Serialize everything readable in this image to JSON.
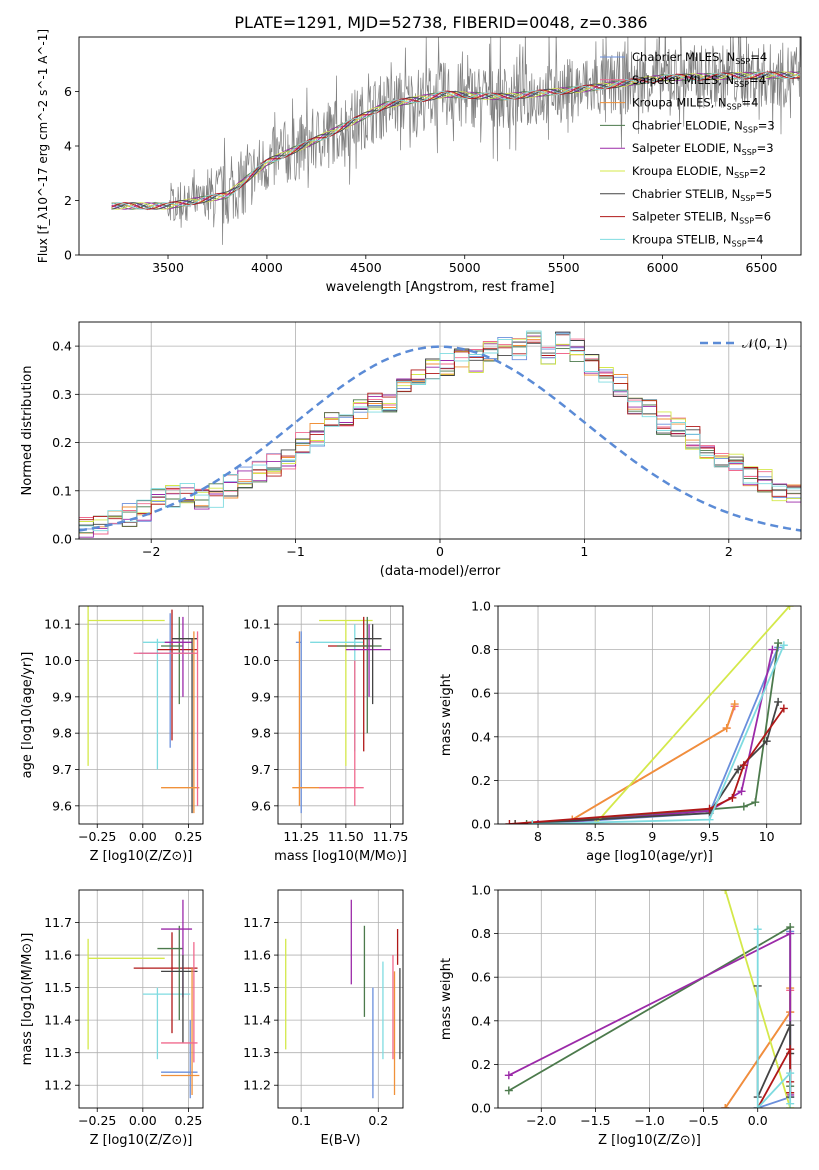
{
  "figure_title": "PLATE=1291, MJD=52738, FIBERID=0048, z=0.386",
  "legend_entries": [
    {
      "base": "Chabrier MILES, N",
      "sub": "SSP",
      "tail": "=4",
      "color": "#6a8fdc"
    },
    {
      "base": "Salpeter MILES, N",
      "sub": "SSP",
      "tail": "=4",
      "color": "#f06a8e"
    },
    {
      "base": "Kroupa MILES, N",
      "sub": "SSP",
      "tail": "=4",
      "color": "#f0913a"
    },
    {
      "base": "Chabrier ELODIE, N",
      "sub": "SSP",
      "tail": "=3",
      "color": "#4c7a4c"
    },
    {
      "base": "Salpeter ELODIE, N",
      "sub": "SSP",
      "tail": "=3",
      "color": "#9b2aa8"
    },
    {
      "base": "Kroupa ELODIE, N",
      "sub": "SSP",
      "tail": "=2",
      "color": "#d4e84a"
    },
    {
      "base": "Chabrier STELIB, N",
      "sub": "SSP",
      "tail": "=5",
      "color": "#444444"
    },
    {
      "base": "Salpeter STELIB, N",
      "sub": "SSP",
      "tail": "=6",
      "color": "#b01818"
    },
    {
      "base": "Kroupa STELIB, N",
      "sub": "SSP",
      "tail": "=4",
      "color": "#7fdbe0"
    }
  ],
  "chart_data": [
    {
      "id": "spectrum",
      "type": "line",
      "xlabel": "wavelength [Angstrom, rest frame]",
      "ylabel": "Flux [f_λ10^-17 erg cm^-2 s^-1 A^-1]",
      "xlim": [
        3050,
        6700
      ],
      "ylim": [
        0,
        8
      ],
      "xticks": [
        3500,
        4000,
        4500,
        5000,
        5500,
        6000,
        6500
      ],
      "yticks": [
        0,
        2,
        4,
        6
      ],
      "grid": false,
      "legend": "top-right",
      "data_color": "#808080",
      "model_trend": {
        "x": [
          3200,
          3500,
          3800,
          4000,
          4300,
          4600,
          4900,
          5200,
          5600,
          6000,
          6500
        ],
        "y": [
          1.8,
          1.8,
          2.2,
          3.4,
          4.4,
          5.5,
          5.9,
          5.8,
          6.1,
          6.5,
          6.6
        ]
      }
    },
    {
      "id": "residuals",
      "type": "area",
      "xlabel": "(data-model)/error",
      "ylabel": "Normed distribution",
      "xlim": [
        -2.5,
        2.5
      ],
      "ylim": [
        0,
        0.45
      ],
      "xticks": [
        -2,
        -1,
        0,
        1,
        2
      ],
      "yticks": [
        0.0,
        0.1,
        0.2,
        0.3,
        0.4
      ],
      "grid": true,
      "legend": "top-right",
      "reference_label": "𝒩(0, 1)",
      "reference_color": "#5b8bd6",
      "bin_width": 0.1,
      "bin_start": -2.5,
      "histogram_mean": [
        0.02,
        0.03,
        0.05,
        0.05,
        0.06,
        0.08,
        0.09,
        0.1,
        0.085,
        0.09,
        0.11,
        0.13,
        0.14,
        0.155,
        0.17,
        0.2,
        0.215,
        0.245,
        0.24,
        0.265,
        0.28,
        0.285,
        0.31,
        0.34,
        0.35,
        0.36,
        0.38,
        0.37,
        0.39,
        0.4,
        0.395,
        0.41,
        0.38,
        0.405,
        0.39,
        0.36,
        0.34,
        0.32,
        0.27,
        0.265,
        0.24,
        0.235,
        0.21,
        0.19,
        0.17,
        0.16,
        0.135,
        0.12,
        0.1,
        0.09,
        0.08,
        0.075,
        0.07,
        0.06,
        0.055,
        0.05,
        0.045,
        0.03
      ]
    },
    {
      "id": "z-age",
      "type": "scatter",
      "xlabel": "Z [log10(Z/Z⊙)]",
      "ylabel": "age  [log10(age/yr)]",
      "xlim": [
        -0.35,
        0.33
      ],
      "ylim": [
        9.55,
        10.15
      ],
      "xticks": [
        -0.25,
        0.0,
        0.25
      ],
      "xtick_labels": [
        "−0.25",
        "0.00",
        "0.25"
      ],
      "yticks": [
        9.6,
        9.7,
        9.8,
        9.9,
        10.0,
        10.1
      ],
      "grid": true,
      "points": [
        {
          "x": -0.3,
          "y": 10.11,
          "xmin": -0.3,
          "xmax": 0.12,
          "ymin": 9.71,
          "ymax": 10.15,
          "model": 5
        },
        {
          "x": 0.08,
          "y": 10.05,
          "xmin": 0.0,
          "xmax": 0.26,
          "ymin": 9.7,
          "ymax": 10.06,
          "model": 8
        },
        {
          "x": 0.15,
          "y": 10.02,
          "xmin": -0.02,
          "xmax": 0.28,
          "ymin": 9.76,
          "ymax": 10.13,
          "model": 0
        },
        {
          "x": 0.16,
          "y": 10.03,
          "xmin": 0.08,
          "xmax": 0.3,
          "ymin": 9.78,
          "ymax": 10.14,
          "model": 7
        },
        {
          "x": 0.2,
          "y": 10.04,
          "xmin": 0.1,
          "xmax": 0.22,
          "ymin": 9.88,
          "ymax": 10.12,
          "model": 3
        },
        {
          "x": 0.22,
          "y": 10.05,
          "xmin": 0.12,
          "xmax": 0.27,
          "ymin": 9.9,
          "ymax": 10.12,
          "model": 4
        },
        {
          "x": 0.27,
          "y": 10.06,
          "xmin": 0.16,
          "xmax": 0.3,
          "ymin": 9.58,
          "ymax": 10.06,
          "model": 6
        },
        {
          "x": 0.28,
          "y": 9.65,
          "xmin": 0.1,
          "xmax": 0.31,
          "ymin": 9.58,
          "ymax": 10.08,
          "model": 2
        },
        {
          "x": 0.3,
          "y": 10.02,
          "xmin": -0.05,
          "xmax": 0.3,
          "ymin": 9.6,
          "ymax": 10.08,
          "model": 1
        }
      ]
    },
    {
      "id": "mass-age",
      "type": "scatter",
      "xlabel": "mass [log10(M/M⊙)]",
      "ylabel": "",
      "xlim": [
        11.12,
        11.82
      ],
      "ylim": [
        9.55,
        10.15
      ],
      "xticks": [
        11.25,
        11.5,
        11.75
      ],
      "xtick_labels": [
        "11.25",
        "11.50",
        "11.75"
      ],
      "yticks": [
        9.6,
        9.7,
        9.8,
        9.9,
        10.0,
        10.1
      ],
      "grid": true,
      "points": [
        {
          "x": 11.25,
          "y": 10.05,
          "xmin": 11.22,
          "xmax": 11.25,
          "ymin": 9.58,
          "ymax": 10.08,
          "model": 0
        },
        {
          "x": 11.5,
          "y": 10.11,
          "xmin": 11.35,
          "xmax": 11.65,
          "ymin": 9.71,
          "ymax": 10.11,
          "model": 5
        },
        {
          "x": 11.55,
          "y": 10.05,
          "xmin": 11.3,
          "xmax": 11.6,
          "ymin": 9.75,
          "ymax": 10.1,
          "model": 8
        },
        {
          "x": 11.6,
          "y": 10.04,
          "xmin": 11.4,
          "xmax": 11.65,
          "ymin": 9.75,
          "ymax": 10.12,
          "model": 7
        },
        {
          "x": 11.62,
          "y": 10.04,
          "xmin": 11.45,
          "xmax": 11.7,
          "ymin": 9.8,
          "ymax": 10.12,
          "model": 3
        },
        {
          "x": 11.63,
          "y": 10.03,
          "xmin": 11.5,
          "xmax": 11.75,
          "ymin": 9.9,
          "ymax": 10.1,
          "model": 4
        },
        {
          "x": 11.65,
          "y": 10.06,
          "xmin": 11.55,
          "xmax": 11.7,
          "ymin": 9.88,
          "ymax": 10.1,
          "model": 6
        },
        {
          "x": 11.24,
          "y": 9.65,
          "xmin": 11.2,
          "xmax": 11.48,
          "ymin": 9.6,
          "ymax": 10.08,
          "model": 2
        },
        {
          "x": 11.55,
          "y": 9.65,
          "xmin": 11.35,
          "xmax": 11.6,
          "ymin": 9.6,
          "ymax": 10.0,
          "model": 1
        }
      ]
    },
    {
      "id": "weight-age",
      "type": "line",
      "xlabel": "age  [log10(age/yr)]",
      "ylabel": "mass weight",
      "xlim": [
        7.65,
        10.3
      ],
      "ylim": [
        0.0,
        1.0
      ],
      "xticks": [
        8.0,
        8.5,
        9.0,
        9.5,
        10.0
      ],
      "yticks": [
        0.0,
        0.2,
        0.4,
        0.6,
        0.8,
        1.0
      ],
      "grid": true,
      "series": [
        {
          "model": 0,
          "x": [
            8.0,
            9.5,
            10.1
          ],
          "y": [
            0.0,
            0.05,
            0.81
          ]
        },
        {
          "model": 1,
          "x": [
            8.3,
            9.65,
            9.72
          ],
          "y": [
            0.02,
            0.44,
            0.54
          ]
        },
        {
          "model": 2,
          "x": [
            7.8,
            8.3,
            9.65,
            9.72
          ],
          "y": [
            0.0,
            0.02,
            0.44,
            0.55
          ]
        },
        {
          "model": 3,
          "x": [
            7.9,
            9.8,
            9.9,
            10.1
          ],
          "y": [
            0.0,
            0.08,
            0.1,
            0.83
          ]
        },
        {
          "model": 4,
          "x": [
            8.0,
            9.5,
            9.78,
            10.05
          ],
          "y": [
            0.0,
            0.06,
            0.15,
            0.8
          ]
        },
        {
          "model": 5,
          "x": [
            8.5,
            10.2
          ],
          "y": [
            0.0,
            1.0
          ]
        },
        {
          "model": 6,
          "x": [
            7.8,
            9.5,
            9.75,
            10.0,
            10.1
          ],
          "y": [
            0.0,
            0.05,
            0.25,
            0.38,
            0.56
          ]
        },
        {
          "model": 7,
          "x": [
            7.75,
            9.5,
            9.7,
            9.8,
            10.15
          ],
          "y": [
            0.0,
            0.07,
            0.12,
            0.27,
            0.53
          ]
        },
        {
          "model": 8,
          "x": [
            7.95,
            9.5,
            10.15
          ],
          "y": [
            0.0,
            0.02,
            0.82
          ]
        }
      ]
    },
    {
      "id": "z-mass",
      "type": "scatter",
      "xlabel": "Z [log10(Z/Z⊙)]",
      "ylabel": "mass [log10(M/M⊙)]",
      "xlim": [
        -0.35,
        0.33
      ],
      "ylim": [
        11.13,
        11.8
      ],
      "xticks": [
        -0.25,
        0.0,
        0.25
      ],
      "xtick_labels": [
        "−0.25",
        "0.00",
        "0.25"
      ],
      "yticks": [
        11.2,
        11.3,
        11.4,
        11.5,
        11.6,
        11.7
      ],
      "grid": true,
      "points": [
        {
          "x": -0.3,
          "y": 11.59,
          "xmin": -0.3,
          "xmax": 0.12,
          "ymin": 11.31,
          "ymax": 11.65,
          "model": 5
        },
        {
          "x": 0.08,
          "y": 11.48,
          "xmin": 0.0,
          "xmax": 0.26,
          "ymin": 11.28,
          "ymax": 11.5,
          "model": 8
        },
        {
          "x": 0.16,
          "y": 11.56,
          "xmin": -0.05,
          "xmax": 0.3,
          "ymin": 11.36,
          "ymax": 11.67,
          "model": 7
        },
        {
          "x": 0.2,
          "y": 11.62,
          "xmin": 0.08,
          "xmax": 0.22,
          "ymin": 11.4,
          "ymax": 11.69,
          "model": 3
        },
        {
          "x": 0.22,
          "y": 11.68,
          "xmin": 0.1,
          "xmax": 0.27,
          "ymin": 11.47,
          "ymax": 11.77,
          "model": 4
        },
        {
          "x": 0.22,
          "y": 11.55,
          "xmin": 0.1,
          "xmax": 0.3,
          "ymin": 11.33,
          "ymax": 11.6,
          "model": 6
        },
        {
          "x": 0.26,
          "y": 11.24,
          "xmin": 0.1,
          "xmax": 0.3,
          "ymin": 11.16,
          "ymax": 11.4,
          "model": 0
        },
        {
          "x": 0.27,
          "y": 11.23,
          "xmin": 0.1,
          "xmax": 0.31,
          "ymin": 11.17,
          "ymax": 11.56,
          "model": 2
        },
        {
          "x": 0.28,
          "y": 11.33,
          "xmin": 0.1,
          "xmax": 0.3,
          "ymin": 11.27,
          "ymax": 11.64,
          "model": 1
        }
      ]
    },
    {
      "id": "ebv-mass",
      "type": "scatter",
      "xlabel": "E(B-V)",
      "ylabel": "",
      "xlim": [
        0.07,
        0.232
      ],
      "ylim": [
        11.13,
        11.8
      ],
      "xticks": [
        0.1,
        0.2
      ],
      "xtick_labels": [
        "0.1",
        "0.2"
      ],
      "yticks": [
        11.2,
        11.3,
        11.4,
        11.5,
        11.6,
        11.7
      ],
      "grid": true,
      "points": [
        {
          "x": 0.08,
          "y": 11.48,
          "xmin": 0.08,
          "xmax": 0.08,
          "ymin": 11.31,
          "ymax": 11.65,
          "model": 5
        },
        {
          "x": 0.165,
          "y": 11.64,
          "xmin": 0.165,
          "xmax": 0.165,
          "ymin": 11.51,
          "ymax": 11.77,
          "model": 4
        },
        {
          "x": 0.182,
          "y": 11.55,
          "xmin": 0.182,
          "xmax": 0.182,
          "ymin": 11.41,
          "ymax": 11.69,
          "model": 3
        },
        {
          "x": 0.193,
          "y": 11.33,
          "xmin": 0.193,
          "xmax": 0.193,
          "ymin": 11.16,
          "ymax": 11.5,
          "model": 0
        },
        {
          "x": 0.206,
          "y": 11.43,
          "xmin": 0.206,
          "xmax": 0.206,
          "ymin": 11.28,
          "ymax": 11.58,
          "model": 8
        },
        {
          "x": 0.219,
          "y": 11.41,
          "xmin": 0.219,
          "xmax": 0.219,
          "ymin": 11.28,
          "ymax": 11.6,
          "model": 1
        },
        {
          "x": 0.221,
          "y": 11.36,
          "xmin": 0.221,
          "xmax": 0.221,
          "ymin": 11.17,
          "ymax": 11.55,
          "model": 2
        },
        {
          "x": 0.225,
          "y": 11.62,
          "xmin": 0.225,
          "xmax": 0.225,
          "ymin": 11.57,
          "ymax": 11.68,
          "model": 7
        },
        {
          "x": 0.228,
          "y": 11.42,
          "xmin": 0.228,
          "xmax": 0.228,
          "ymin": 11.28,
          "ymax": 11.56,
          "model": 6
        }
      ]
    },
    {
      "id": "weight-z",
      "type": "line",
      "xlabel": "Z [log10(Z/Z⊙)]",
      "ylabel": "mass weight",
      "xlim": [
        -2.4,
        0.4
      ],
      "ylim": [
        0.0,
        1.0
      ],
      "xticks": [
        -2.0,
        -1.5,
        -1.0,
        -0.5,
        0.0
      ],
      "xtick_labels": [
        "−2.0",
        "−1.5",
        "−1.0",
        "−0.5",
        "0.0"
      ],
      "yticks": [
        0.0,
        0.2,
        0.4,
        0.6,
        0.8,
        1.0
      ],
      "grid": true,
      "series": [
        {
          "model": 0,
          "x": [
            0.0,
            0.3,
            0.3
          ],
          "y": [
            0.0,
            0.05,
            0.81
          ]
        },
        {
          "model": 1,
          "x": [
            -0.3,
            0.3,
            0.3
          ],
          "y": [
            0.0,
            0.44,
            0.54
          ]
        },
        {
          "model": 2,
          "x": [
            -0.3,
            0.3,
            0.3
          ],
          "y": [
            0.0,
            0.44,
            0.55
          ]
        },
        {
          "model": 3,
          "x": [
            -2.3,
            0.3,
            0.3
          ],
          "y": [
            0.08,
            0.83,
            0.1
          ]
        },
        {
          "model": 4,
          "x": [
            -2.3,
            0.3,
            0.3
          ],
          "y": [
            0.15,
            0.8,
            0.06
          ]
        },
        {
          "model": 5,
          "x": [
            -0.3,
            0.3
          ],
          "y": [
            1.0,
            0.0
          ]
        },
        {
          "model": 6,
          "x": [
            0.0,
            0.0,
            0.3,
            0.3,
            0.3
          ],
          "y": [
            0.56,
            0.05,
            0.38,
            0.25,
            0.05
          ]
        },
        {
          "model": 7,
          "x": [
            0.0,
            0.3,
            0.3,
            0.3
          ],
          "y": [
            0.0,
            0.27,
            0.12,
            0.07
          ]
        },
        {
          "model": 8,
          "x": [
            0.0,
            0.0,
            0.3,
            0.3
          ],
          "y": [
            0.82,
            0.0,
            0.16,
            0.02
          ]
        }
      ]
    }
  ]
}
